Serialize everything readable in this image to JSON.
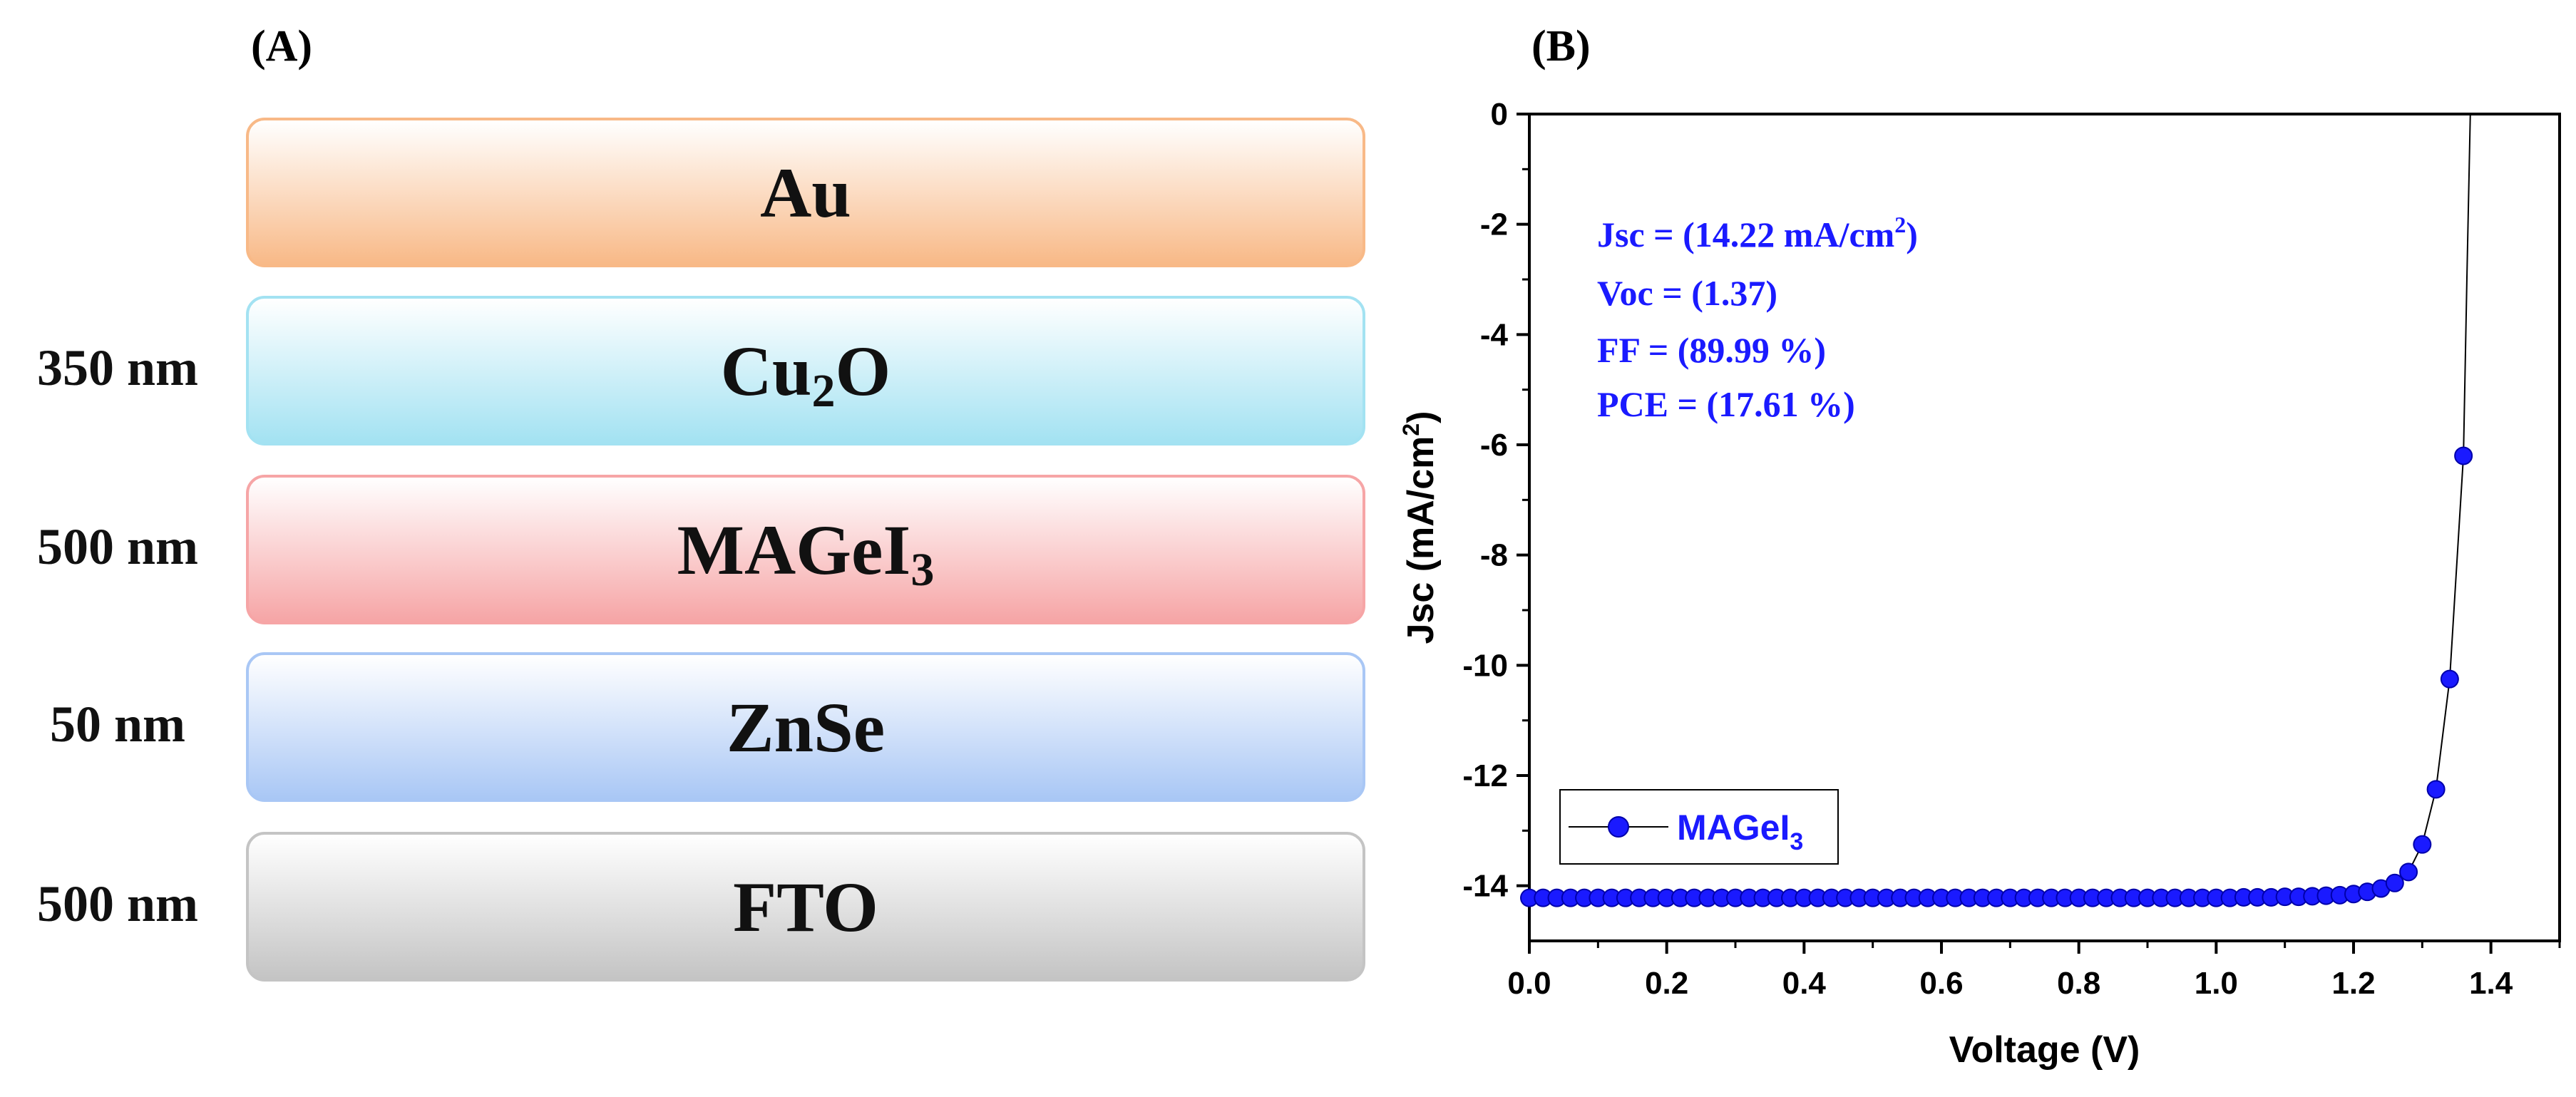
{
  "panel_a": {
    "label": "(A)",
    "layers": [
      {
        "name": "Au",
        "sub": "",
        "suffix": "",
        "thickness": "",
        "color": "#f8b987"
      },
      {
        "name": "Cu",
        "sub": "2",
        "suffix": "O",
        "thickness": "350 nm",
        "color": "#a3e2f2"
      },
      {
        "name": "MAGeI",
        "sub": "3",
        "suffix": "",
        "thickness": "500 nm",
        "color": "#f6a5a6"
      },
      {
        "name": "ZnSe",
        "sub": "",
        "suffix": "",
        "thickness": "50 nm",
        "color": "#a9c7f5"
      },
      {
        "name": "FTO",
        "sub": "",
        "suffix": "",
        "thickness": "500 nm",
        "color": "#c4c4c4"
      }
    ]
  },
  "panel_b": {
    "label": "(B)",
    "annotations": {
      "jsc_prefix": "Jsc = (14.22 mA/cm",
      "jsc_sup": "2",
      "jsc_suffix": ")",
      "voc": "Voc = (1.37)",
      "ff": "FF = (89.99 %)",
      "pce": "PCE = (17.61 %)"
    }
  },
  "chart_data": {
    "type": "line",
    "title": "",
    "xlabel": "Voltage (V)",
    "ylabel": "Jsc (mA/cm",
    "ylabel_sup": "2",
    "ylabel_suffix": ")",
    "xlim": [
      0.0,
      1.5
    ],
    "ylim": [
      -15,
      0
    ],
    "x_ticks": [
      0.0,
      0.2,
      0.4,
      0.6,
      0.8,
      1.0,
      1.2,
      1.4
    ],
    "x_tick_labels": [
      "0.0",
      "0.2",
      "0.4",
      "0.6",
      "0.8",
      "1.0",
      "1.2",
      "1.4"
    ],
    "y_ticks": [
      0,
      -2,
      -4,
      -6,
      -8,
      -10,
      -12,
      -14
    ],
    "y_tick_labels": [
      "0",
      "-2",
      "-4",
      "-6",
      "-8",
      "-10",
      "-12",
      "-14"
    ],
    "legend": {
      "label": "MAGeI",
      "label_sub": "3",
      "position": "bottom-left"
    },
    "series": [
      {
        "name": "MAGeI3",
        "color": "#1a1aff",
        "x": [
          0.0,
          0.02,
          0.04,
          0.06,
          0.08,
          0.1,
          0.12,
          0.14,
          0.16,
          0.18,
          0.2,
          0.22,
          0.24,
          0.26,
          0.28,
          0.3,
          0.32,
          0.34,
          0.36,
          0.38,
          0.4,
          0.42,
          0.44,
          0.46,
          0.48,
          0.5,
          0.52,
          0.54,
          0.56,
          0.58,
          0.6,
          0.62,
          0.64,
          0.66,
          0.68,
          0.7,
          0.72,
          0.74,
          0.76,
          0.78,
          0.8,
          0.82,
          0.84,
          0.86,
          0.88,
          0.9,
          0.92,
          0.94,
          0.96,
          0.98,
          1.0,
          1.02,
          1.04,
          1.06,
          1.08,
          1.1,
          1.12,
          1.14,
          1.16,
          1.18,
          1.2,
          1.22,
          1.24,
          1.26,
          1.28,
          1.3,
          1.32,
          1.34,
          1.36
        ],
        "y": [
          -14.22,
          -14.22,
          -14.22,
          -14.22,
          -14.22,
          -14.22,
          -14.22,
          -14.22,
          -14.22,
          -14.22,
          -14.22,
          -14.22,
          -14.22,
          -14.22,
          -14.22,
          -14.22,
          -14.22,
          -14.22,
          -14.22,
          -14.22,
          -14.22,
          -14.22,
          -14.22,
          -14.22,
          -14.22,
          -14.22,
          -14.22,
          -14.22,
          -14.22,
          -14.22,
          -14.22,
          -14.22,
          -14.22,
          -14.22,
          -14.22,
          -14.22,
          -14.22,
          -14.22,
          -14.22,
          -14.22,
          -14.22,
          -14.22,
          -14.22,
          -14.22,
          -14.22,
          -14.22,
          -14.22,
          -14.22,
          -14.22,
          -14.22,
          -14.22,
          -14.22,
          -14.21,
          -14.21,
          -14.21,
          -14.2,
          -14.2,
          -14.19,
          -14.18,
          -14.17,
          -14.15,
          -14.11,
          -14.05,
          -13.95,
          -13.75,
          -13.25,
          -12.25,
          -10.25,
          -6.2
        ]
      }
    ],
    "curve_tail": {
      "x": [
        1.36,
        1.365,
        1.37
      ],
      "y": [
        -6.2,
        -3.0,
        0.0
      ]
    }
  }
}
